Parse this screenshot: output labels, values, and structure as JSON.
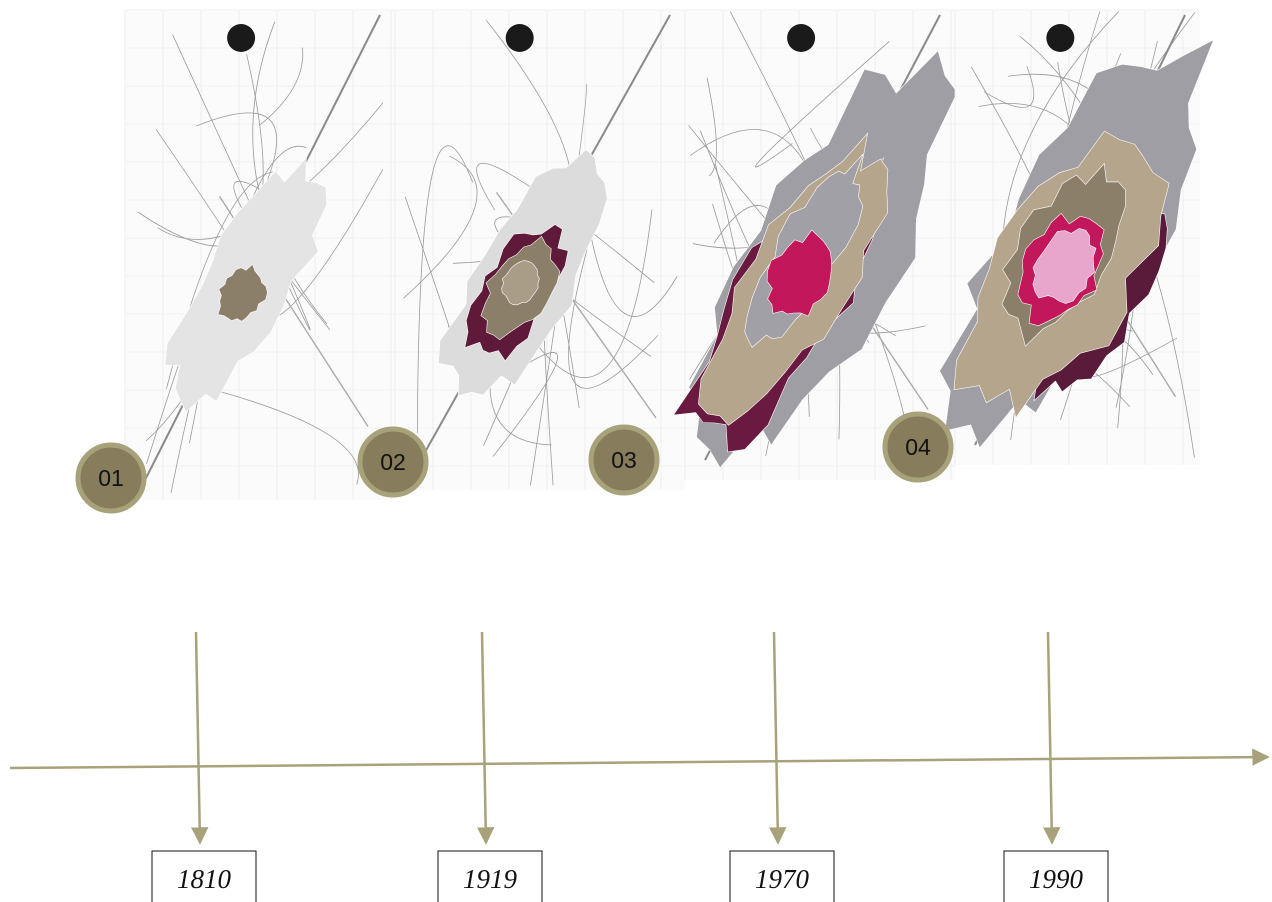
{
  "panels": [
    {
      "label": "01",
      "year": "1810"
    },
    {
      "label": "02",
      "year": "1919"
    },
    {
      "label": "03",
      "year": "1970"
    },
    {
      "label": "04",
      "year": "1990"
    }
  ]
}
